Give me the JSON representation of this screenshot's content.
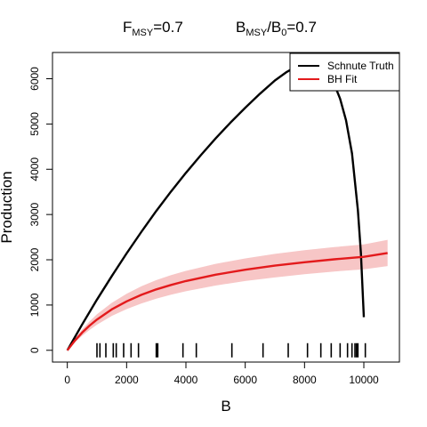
{
  "chart_data": {
    "type": "line",
    "title": {
      "left": {
        "main": "F",
        "sub": "MSY",
        "rest": "=0.7"
      },
      "right": {
        "main": "B",
        "sub": "MSY",
        "slash": "/B",
        "sub2": "0",
        "rest": "=0.7"
      }
    },
    "xlabel": "B",
    "ylabel": "Production",
    "xlim": [
      -500,
      11200
    ],
    "ylim": [
      -260,
      6580
    ],
    "xticks": [
      0,
      2000,
      4000,
      6000,
      8000,
      10000
    ],
    "xtick_labels": [
      "0",
      "2000",
      "4000",
      "6000",
      "8000",
      "10000"
    ],
    "yticks": [
      0,
      1000,
      2000,
      3000,
      4000,
      5000,
      6000
    ],
    "ytick_labels": [
      "0",
      "1000",
      "2000",
      "3000",
      "4000",
      "5000",
      "6000"
    ],
    "legend": {
      "position": "top-right",
      "entries": [
        {
          "label": "Schnute Truth",
          "color": "#000000"
        },
        {
          "label": "BH Fit",
          "color": "#e31a1c"
        }
      ]
    },
    "series": [
      {
        "name": "Schnute Truth",
        "color": "#000000",
        "x": [
          0,
          500,
          1000,
          1500,
          2000,
          2500,
          3000,
          3500,
          4000,
          4500,
          5000,
          5500,
          6000,
          6500,
          7000,
          7400,
          7800,
          8200,
          8600,
          9000,
          9200,
          9400,
          9600,
          9800,
          9900,
          10000
        ],
        "y": [
          0,
          570,
          1120,
          1640,
          2140,
          2620,
          3080,
          3510,
          3920,
          4310,
          4680,
          5030,
          5360,
          5670,
          5960,
          6150,
          6300,
          6340,
          6230,
          5880,
          5560,
          5080,
          4350,
          3100,
          2150,
          730
        ]
      },
      {
        "name": "BH Fit",
        "color": "#e31a1c",
        "x": [
          0,
          250,
          500,
          750,
          1000,
          1500,
          2000,
          2500,
          3000,
          3500,
          4000,
          5000,
          6000,
          7000,
          8000,
          9000,
          10000,
          10800
        ],
        "y": [
          0,
          210,
          390,
          545,
          680,
          905,
          1080,
          1225,
          1345,
          1445,
          1530,
          1670,
          1780,
          1870,
          1945,
          2010,
          2065,
          2150
        ],
        "band_lower": [
          0,
          170,
          320,
          450,
          565,
          760,
          910,
          1035,
          1140,
          1230,
          1305,
          1430,
          1530,
          1610,
          1680,
          1740,
          1790,
          1860
        ],
        "band_upper": [
          0,
          250,
          460,
          640,
          795,
          1050,
          1250,
          1415,
          1550,
          1660,
          1755,
          1910,
          2030,
          2130,
          2210,
          2280,
          2340,
          2440
        ],
        "band_color": "#f7c6c6"
      }
    ],
    "rug": [
      1000,
      1100,
      1300,
      1550,
      1650,
      1900,
      2150,
      2400,
      3000,
      3050,
      3900,
      4350,
      5550,
      6600,
      7450,
      8100,
      8550,
      8900,
      9200,
      9450,
      9600,
      9700,
      9750,
      9800,
      10050
    ]
  }
}
